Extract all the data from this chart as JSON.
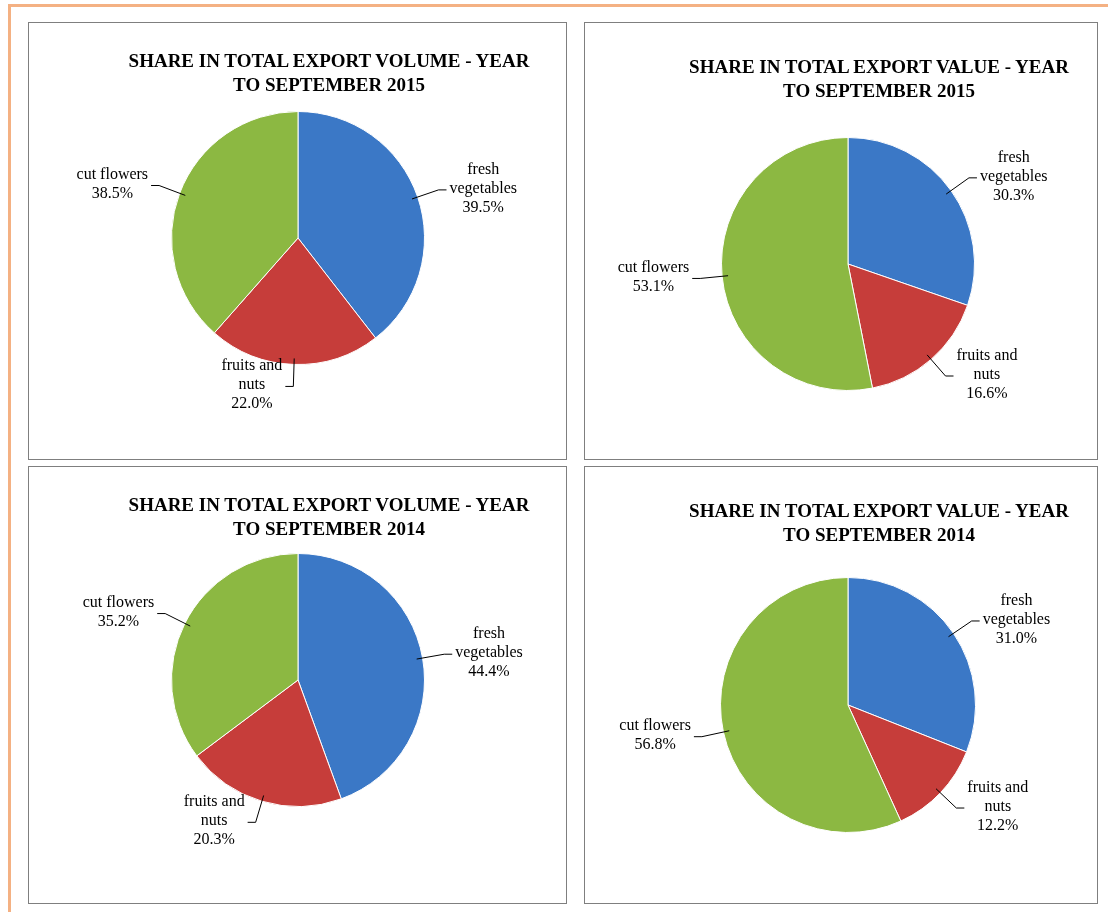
{
  "chart_data": [
    {
      "type": "pie",
      "title": "SHARE IN TOTAL EXPORT VOLUME - YEAR TO SEPTEMBER 2015",
      "categories": [
        "fresh vegetables",
        "fruits and nuts",
        "cut flowers"
      ],
      "values": [
        39.5,
        22.0,
        38.5
      ],
      "value_labels": [
        "39.5%",
        "22.0%",
        "38.5%"
      ],
      "colors": [
        "#3b78c6",
        "#c63d3a",
        "#8cb842"
      ],
      "legend": false
    },
    {
      "type": "pie",
      "title": "SHARE IN TOTAL EXPORT VALUE - YEAR TO SEPTEMBER 2015",
      "categories": [
        "fresh vegetables",
        "fruits and nuts",
        "cut flowers"
      ],
      "values": [
        30.3,
        16.6,
        53.1
      ],
      "value_labels": [
        "30.3%",
        "16.6%",
        "53.1%"
      ],
      "colors": [
        "#3b78c6",
        "#c63d3a",
        "#8cb842"
      ],
      "legend": false
    },
    {
      "type": "pie",
      "title": "SHARE IN TOTAL EXPORT VOLUME - YEAR TO SEPTEMBER 2014",
      "categories": [
        "fresh vegetables",
        "fruits and nuts",
        "cut flowers"
      ],
      "values": [
        44.4,
        20.3,
        35.2
      ],
      "value_labels": [
        "44.4%",
        "20.3%",
        "35.2%"
      ],
      "colors": [
        "#3b78c6",
        "#c63d3a",
        "#8cb842"
      ],
      "legend": false
    },
    {
      "type": "pie",
      "title": "SHARE IN TOTAL EXPORT VALUE - YEAR TO SEPTEMBER 2014",
      "categories": [
        "fresh vegetables",
        "fruits and nuts",
        "cut flowers"
      ],
      "values": [
        31.0,
        12.2,
        56.8
      ],
      "value_labels": [
        "31.0%",
        "12.2%",
        "56.8%"
      ],
      "colors": [
        "#3b78c6",
        "#c63d3a",
        "#8cb842"
      ],
      "legend": false
    }
  ]
}
